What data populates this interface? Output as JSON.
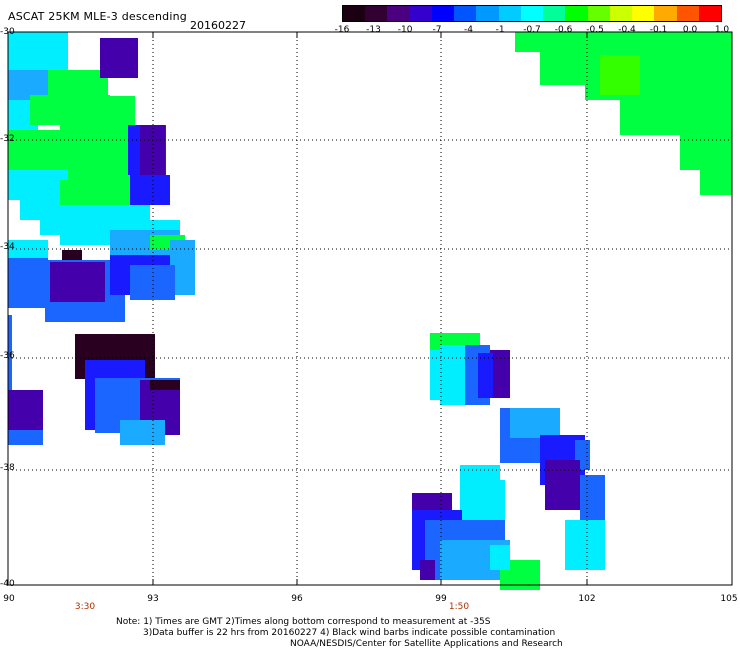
{
  "header": {
    "title": "ASCAT 25KM MLE-3 descending",
    "date": "20160227"
  },
  "colorbar": {
    "tick_labels": [
      "-16",
      "-13",
      "-10",
      "-7",
      "-4",
      "-1",
      "-0.7",
      "-0.6",
      "-0.5",
      "-0.4",
      "-0.1",
      "0.0",
      "1.0"
    ],
    "colors": [
      "#1a0010",
      "#330033",
      "#4b0080",
      "#3300cc",
      "#0000ff",
      "#0055ff",
      "#0099ff",
      "#00ccff",
      "#00ffff",
      "#00ff99",
      "#00ff00",
      "#66ff00",
      "#ccff00",
      "#ffff00",
      "#ffaa00",
      "#ff5500",
      "#ff0000"
    ]
  },
  "axes": {
    "x_labels": [
      "90",
      "93",
      "96",
      "99",
      "102",
      "105"
    ],
    "y_labels": [
      "-30",
      "-32",
      "-34",
      "-36",
      "-38",
      "-40"
    ]
  },
  "pass_times": [
    "3:30",
    "1:50"
  ],
  "notes": {
    "line1": "Note: 1) Times are GMT 2)Times along bottom correspond to measurement at -35S",
    "line2": "3)Data buffer is 22 hrs from 20160227 4) Black wind barbs indicate possible contamination",
    "line3": "NOAA/NESDIS/Center for Satellite Applications and Research"
  },
  "palette": {
    "dark": "#2a0020",
    "purple": "#4400aa",
    "blue": "#1a1aff",
    "midblue": "#1a66ff",
    "lightblue": "#1aaaff",
    "cyan": "#00eeff",
    "green": "#00ff40",
    "brightgreen": "#33ff00"
  }
}
